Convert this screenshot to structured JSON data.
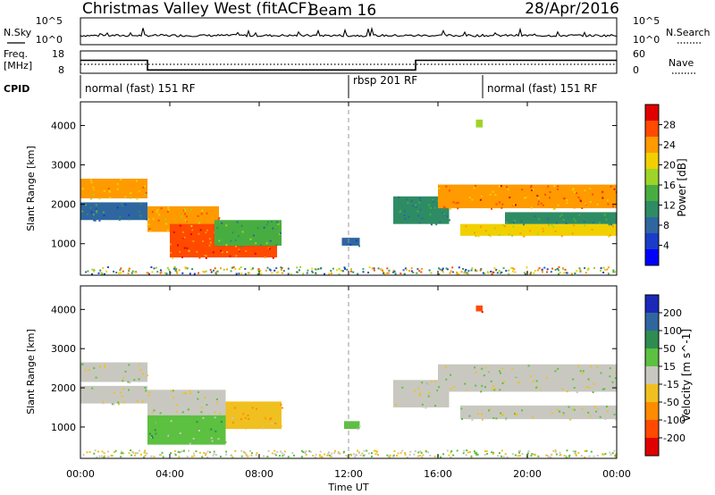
{
  "header": {
    "site": "Christmas Valley West (fitACF)",
    "beam": "Beam 16",
    "date": "28/Apr/2016"
  },
  "top_strip": {
    "nsky_label": "N.Sky",
    "nsearch_label": "N.Search",
    "count_ticks_left": [
      "10^5",
      "10^0"
    ],
    "count_ticks_right": [
      "10^5",
      "10^0"
    ],
    "freq_label": "Freq.",
    "freq_unit": "[MHz]",
    "freq_ticks": [
      "18",
      "8"
    ],
    "nave_label": "Nave",
    "nave_ticks": [
      "60",
      "0"
    ],
    "cpid_label": "CPID",
    "cpid_segments": [
      {
        "text": "normal (fast) 151 RF",
        "start_hour": 0,
        "end_hour": 12
      },
      {
        "text": "rbsp 201 RF",
        "start_hour": 12,
        "end_hour": 18
      },
      {
        "text": "normal (fast) 151 RF",
        "start_hour": 18,
        "end_hour": 24
      }
    ],
    "freq_trace": [
      [
        0,
        13.8
      ],
      [
        3,
        13.8
      ],
      [
        3,
        9.5
      ],
      [
        15,
        9.5
      ],
      [
        15,
        13.8
      ],
      [
        24,
        13.8
      ]
    ]
  },
  "chart_data": [
    {
      "type": "heatmap",
      "quantity": "Power",
      "ylabel": "Slant Range [km]",
      "colorbar_label": "Power [dB]",
      "colorbar_ticks": [
        "28",
        "24",
        "20",
        "16",
        "12",
        "8",
        "4"
      ],
      "colorbar_colors": [
        "#e00000",
        "#ff4a00",
        "#ff9a00",
        "#f2d000",
        "#9ed428",
        "#48ad40",
        "#2e8c64",
        "#2f66a0",
        "#1a3cc8",
        "#0000ff"
      ],
      "ylim": [
        200,
        4600
      ],
      "yticks": [
        "1000",
        "2000",
        "3000",
        "4000"
      ],
      "xlim": [
        0,
        24
      ],
      "regions": [
        {
          "x0": 0.0,
          "x1": 3.0,
          "y0": 2150,
          "y1": 2650,
          "value": 24
        },
        {
          "x0": 0.0,
          "x1": 3.0,
          "y0": 1600,
          "y1": 2050,
          "value": 10
        },
        {
          "x0": 3.0,
          "x1": 6.2,
          "y0": 1300,
          "y1": 1950,
          "value": 24
        },
        {
          "x0": 4.0,
          "x1": 8.8,
          "y0": 650,
          "y1": 1500,
          "value": 28
        },
        {
          "x0": 6.0,
          "x1": 9.0,
          "y0": 950,
          "y1": 1600,
          "value": 14
        },
        {
          "x0": 11.7,
          "x1": 12.5,
          "y0": 950,
          "y1": 1150,
          "value": 10
        },
        {
          "x0": 14.0,
          "x1": 16.5,
          "y0": 1500,
          "y1": 2200,
          "value": 12
        },
        {
          "x0": 16.0,
          "x1": 24.0,
          "y0": 1900,
          "y1": 2500,
          "value": 26
        },
        {
          "x0": 17.0,
          "x1": 24.0,
          "y0": 1200,
          "y1": 1500,
          "value": 22
        },
        {
          "x0": 19.0,
          "x1": 24.0,
          "y0": 1500,
          "y1": 1800,
          "value": 12
        },
        {
          "x0": 17.7,
          "x1": 18.0,
          "y0": 3950,
          "y1": 4150,
          "value": 20
        }
      ]
    },
    {
      "type": "heatmap",
      "quantity": "Velocity",
      "ylabel": "Slant Range [km]",
      "colorbar_label": "Velocity [m s^-1]",
      "colorbar_ticks": [
        "200",
        "100",
        "50",
        "15",
        "-15",
        "-50",
        "-100",
        "-200"
      ],
      "colorbar_colors": [
        "#1c28b8",
        "#2f66a0",
        "#2e8c50",
        "#5cc040",
        "#c8c8c0",
        "#f0c020",
        "#ff8c00",
        "#ff4a00",
        "#e00000"
      ],
      "ylim": [
        200,
        4600
      ],
      "yticks": [
        "1000",
        "2000",
        "3000",
        "4000"
      ],
      "xlim": [
        0,
        24
      ],
      "regions": [
        {
          "x0": 0.0,
          "x1": 3.0,
          "y0": 2150,
          "y1": 2650,
          "value": 0
        },
        {
          "x0": 0.0,
          "x1": 3.0,
          "y0": 1600,
          "y1": 2050,
          "value": 0
        },
        {
          "x0": 3.0,
          "x1": 6.5,
          "y0": 1300,
          "y1": 1950,
          "value": 0
        },
        {
          "x0": 3.0,
          "x1": 6.5,
          "y0": 550,
          "y1": 1300,
          "value": 30
        },
        {
          "x0": 6.5,
          "x1": 9.0,
          "y0": 950,
          "y1": 1650,
          "value": -40
        },
        {
          "x0": 11.8,
          "x1": 12.5,
          "y0": 950,
          "y1": 1150,
          "value": 30
        },
        {
          "x0": 14.0,
          "x1": 16.5,
          "y0": 1500,
          "y1": 2200,
          "value": 0
        },
        {
          "x0": 16.0,
          "x1": 24.0,
          "y0": 1900,
          "y1": 2600,
          "value": 0
        },
        {
          "x0": 17.0,
          "x1": 24.0,
          "y0": 1200,
          "y1": 1550,
          "value": 0
        },
        {
          "x0": 17.7,
          "x1": 18.0,
          "y0": 3950,
          "y1": 4100,
          "value": -200
        }
      ]
    }
  ],
  "time_axis": {
    "ticks": [
      "00:00",
      "04:00",
      "08:00",
      "12:00",
      "16:00",
      "20:00",
      "00:00"
    ],
    "label": "Time UT"
  }
}
